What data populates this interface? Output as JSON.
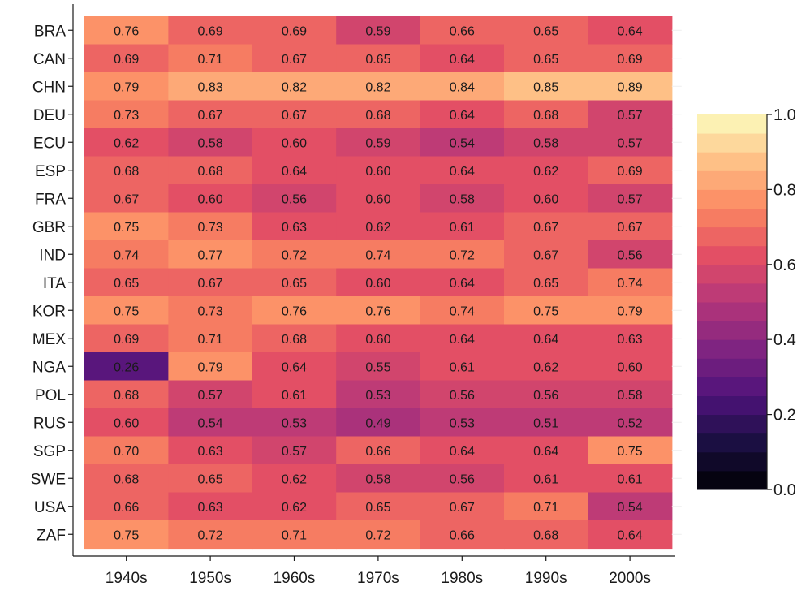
{
  "chart_data": {
    "type": "heatmap",
    "x_categories": [
      "1940s",
      "1950s",
      "1960s",
      "1970s",
      "1980s",
      "1990s",
      "2000s"
    ],
    "y_categories": [
      "BRA",
      "CAN",
      "CHN",
      "DEU",
      "ECU",
      "ESP",
      "FRA",
      "GBR",
      "IND",
      "ITA",
      "KOR",
      "MEX",
      "NGA",
      "POL",
      "RUS",
      "SGP",
      "SWE",
      "USA",
      "ZAF"
    ],
    "values": [
      [
        0.76,
        0.69,
        0.69,
        0.59,
        0.66,
        0.65,
        0.64
      ],
      [
        0.69,
        0.71,
        0.67,
        0.65,
        0.64,
        0.65,
        0.69
      ],
      [
        0.79,
        0.83,
        0.82,
        0.82,
        0.84,
        0.85,
        0.89
      ],
      [
        0.73,
        0.67,
        0.67,
        0.68,
        0.64,
        0.68,
        0.57
      ],
      [
        0.62,
        0.58,
        0.6,
        0.59,
        0.54,
        0.58,
        0.57
      ],
      [
        0.68,
        0.68,
        0.64,
        0.6,
        0.64,
        0.62,
        0.69
      ],
      [
        0.67,
        0.6,
        0.56,
        0.6,
        0.58,
        0.6,
        0.57
      ],
      [
        0.75,
        0.73,
        0.63,
        0.62,
        0.61,
        0.67,
        0.67
      ],
      [
        0.74,
        0.77,
        0.72,
        0.74,
        0.72,
        0.67,
        0.56
      ],
      [
        0.65,
        0.67,
        0.65,
        0.6,
        0.64,
        0.65,
        0.74
      ],
      [
        0.75,
        0.73,
        0.76,
        0.76,
        0.74,
        0.75,
        0.79
      ],
      [
        0.69,
        0.71,
        0.68,
        0.6,
        0.64,
        0.64,
        0.63
      ],
      [
        0.26,
        0.79,
        0.64,
        0.55,
        0.61,
        0.62,
        0.6
      ],
      [
        0.68,
        0.57,
        0.61,
        0.53,
        0.56,
        0.56,
        0.58
      ],
      [
        0.6,
        0.54,
        0.53,
        0.49,
        0.53,
        0.51,
        0.52
      ],
      [
        0.7,
        0.63,
        0.57,
        0.66,
        0.64,
        0.64,
        0.75
      ],
      [
        0.68,
        0.65,
        0.62,
        0.58,
        0.56,
        0.61,
        0.61
      ],
      [
        0.66,
        0.63,
        0.62,
        0.65,
        0.67,
        0.71,
        0.54
      ],
      [
        0.75,
        0.72,
        0.71,
        0.72,
        0.66,
        0.68,
        0.64
      ]
    ],
    "colormap": "magma",
    "colorbar": {
      "range": [
        0.0,
        1.0
      ],
      "ticks": [
        "0.0",
        "0.2",
        "0.4",
        "0.6",
        "0.8",
        "1.0"
      ],
      "levels": 20
    },
    "grid": false,
    "legend": "colorbar right"
  }
}
